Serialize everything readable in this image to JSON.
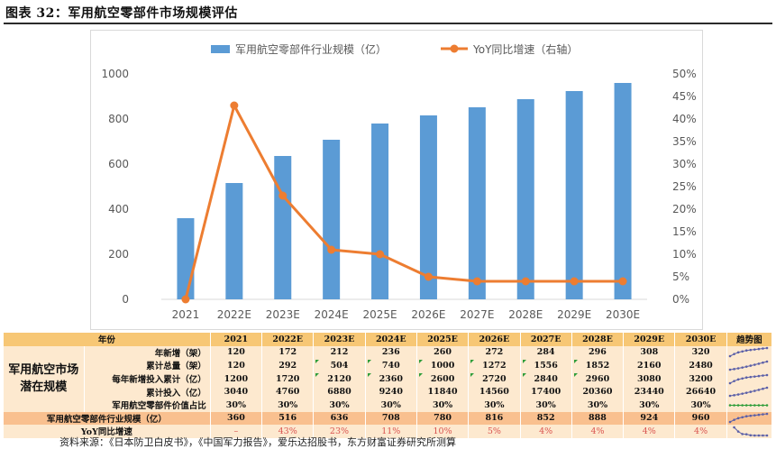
{
  "figure": {
    "title": "图表 32：军用航空零部件市场规模评估"
  },
  "chart_data": {
    "type": "bar+line",
    "categories": [
      "2021",
      "2022E",
      "2023E",
      "2024E",
      "2025E",
      "2026E",
      "2027E",
      "2028E",
      "2029E",
      "2030E"
    ],
    "series": [
      {
        "name": "军用航空零部件行业规模（亿）",
        "type": "bar",
        "axis": "left",
        "color": "#5b9bd5",
        "values": [
          360,
          516,
          636,
          708,
          780,
          816,
          852,
          888,
          924,
          960
        ]
      },
      {
        "name": "YoY同比增速（右轴）",
        "type": "line",
        "axis": "right",
        "color": "#ed7d31",
        "values": [
          0,
          43,
          23,
          11,
          10,
          5,
          4,
          4,
          4,
          4
        ]
      }
    ],
    "y_left": {
      "min": 0,
      "max": 1000,
      "step": 200,
      "ticks": [
        "0",
        "200",
        "400",
        "600",
        "800",
        "1000"
      ]
    },
    "y_right": {
      "min": 0,
      "max": 50,
      "step": 5,
      "ticks": [
        "0%",
        "5%",
        "10%",
        "15%",
        "20%",
        "25%",
        "30%",
        "35%",
        "40%",
        "45%",
        "50%"
      ]
    },
    "legend_position": "top"
  },
  "table": {
    "header": [
      "年份",
      "2021",
      "2022E",
      "2023E",
      "2024E",
      "2025E",
      "2026E",
      "2027E",
      "2028E",
      "2029E",
      "2030E",
      "趋势图"
    ],
    "group_label": "军用航空市场潜在规模",
    "rows": [
      {
        "label": "年新增（架）",
        "values": [
          "120",
          "172",
          "212",
          "236",
          "260",
          "272",
          "284",
          "296",
          "308",
          "320"
        ]
      },
      {
        "label": "累计总量（架）",
        "values": [
          "120",
          "292",
          "504",
          "740",
          "1000",
          "1272",
          "1556",
          "1852",
          "2160",
          "2480"
        ]
      },
      {
        "label": "每年新增投入累计（亿）",
        "values": [
          "1200",
          "1720",
          "2120",
          "2360",
          "2600",
          "2720",
          "2840",
          "2960",
          "3080",
          "3200"
        ]
      },
      {
        "label": "累计投入（亿）",
        "values": [
          "3040",
          "4760",
          "6880",
          "9240",
          "11840",
          "14560",
          "17400",
          "20360",
          "23440",
          "26640"
        ]
      },
      {
        "label": "军用航空零部件价值占比",
        "values": [
          "30%",
          "30%",
          "30%",
          "30%",
          "30%",
          "30%",
          "30%",
          "30%",
          "30%",
          "30%"
        ]
      }
    ],
    "total_row": {
      "label": "军用航空零部件行业规模（亿）",
      "values": [
        "360",
        "516",
        "636",
        "708",
        "780",
        "816",
        "852",
        "888",
        "924",
        "960"
      ]
    },
    "yoy_row": {
      "label": "YoY同比增速",
      "values": [
        "–",
        "43%",
        "23%",
        "11%",
        "10%",
        "5%",
        "4%",
        "4%",
        "4%",
        "4%"
      ]
    }
  },
  "source": "资料来源：《日本防卫白皮书》，《中国军力报告》，爱乐达招股书，东方财富证券研究所测算"
}
